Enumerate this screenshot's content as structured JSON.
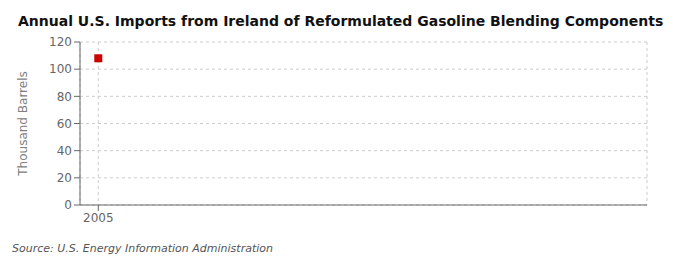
{
  "chart_data": {
    "type": "scatter",
    "title": "Annual U.S. Imports from Ireland of Reformulated Gasoline Blending Components",
    "ylabel": "Thousand Barrels",
    "source": "Source: U.S. Energy Information Administration",
    "x": [
      2005
    ],
    "values": [
      108
    ],
    "color": "#cc0000",
    "marker": "square",
    "xlim": [
      2004.4,
      2023
    ],
    "xticks": [
      2005
    ],
    "ylim": [
      0,
      120
    ],
    "yticks": [
      0,
      20,
      40,
      60,
      80,
      100,
      120
    ],
    "grid": true
  }
}
